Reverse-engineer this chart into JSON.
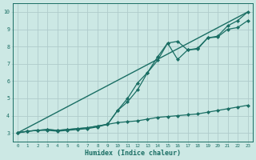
{
  "xlabel": "Humidex (Indice chaleur)",
  "bg_color": "#cce8e4",
  "grid_color": "#b0cccc",
  "line_color": "#1a6e64",
  "xlim": [
    -0.5,
    23.5
  ],
  "ylim": [
    2.5,
    10.5
  ],
  "xticks": [
    0,
    1,
    2,
    3,
    4,
    5,
    6,
    7,
    8,
    9,
    10,
    11,
    12,
    13,
    14,
    15,
    16,
    17,
    18,
    19,
    20,
    21,
    22,
    23
  ],
  "yticks": [
    3,
    4,
    5,
    6,
    7,
    8,
    9,
    10
  ],
  "series": [
    {
      "x": [
        0,
        1,
        2,
        3,
        4,
        5,
        6,
        7,
        8,
        9,
        10,
        11,
        12,
        13,
        14,
        15,
        16,
        17,
        18,
        19,
        20,
        21,
        22,
        23
      ],
      "y": [
        3.0,
        3.1,
        3.15,
        3.15,
        3.1,
        3.15,
        3.2,
        3.25,
        3.35,
        3.5,
        3.6,
        3.65,
        3.7,
        3.8,
        3.9,
        3.95,
        4.0,
        4.05,
        4.1,
        4.2,
        4.3,
        4.4,
        4.5,
        4.6
      ],
      "marker": "D",
      "markersize": 2.0,
      "linewidth": 0.9
    },
    {
      "x": [
        0,
        1,
        2,
        3,
        4,
        5,
        6,
        7,
        8,
        9,
        10,
        11,
        12,
        13,
        14,
        15,
        16,
        17,
        18,
        19,
        20,
        21,
        22,
        23
      ],
      "y": [
        3.0,
        3.1,
        3.15,
        3.2,
        3.15,
        3.2,
        3.25,
        3.3,
        3.4,
        3.5,
        4.3,
        4.8,
        5.5,
        6.5,
        7.2,
        8.2,
        7.25,
        7.8,
        7.85,
        8.5,
        8.55,
        9.0,
        9.1,
        9.5
      ],
      "marker": "D",
      "markersize": 2.0,
      "linewidth": 0.9
    },
    {
      "x": [
        0,
        1,
        2,
        3,
        4,
        5,
        6,
        7,
        8,
        9,
        10,
        11,
        12,
        13,
        14,
        15,
        16,
        17,
        18,
        19,
        20,
        21,
        22,
        23
      ],
      "y": [
        3.0,
        3.1,
        3.15,
        3.2,
        3.15,
        3.2,
        3.25,
        3.3,
        3.4,
        3.5,
        4.3,
        5.0,
        5.9,
        6.5,
        7.4,
        8.2,
        8.3,
        7.8,
        7.9,
        8.5,
        8.6,
        9.2,
        9.5,
        10.0
      ],
      "marker": "D",
      "markersize": 2.0,
      "linewidth": 0.9
    },
    {
      "x": [
        0,
        23
      ],
      "y": [
        3.0,
        10.0
      ],
      "marker": null,
      "markersize": 0,
      "linewidth": 1.0
    }
  ]
}
